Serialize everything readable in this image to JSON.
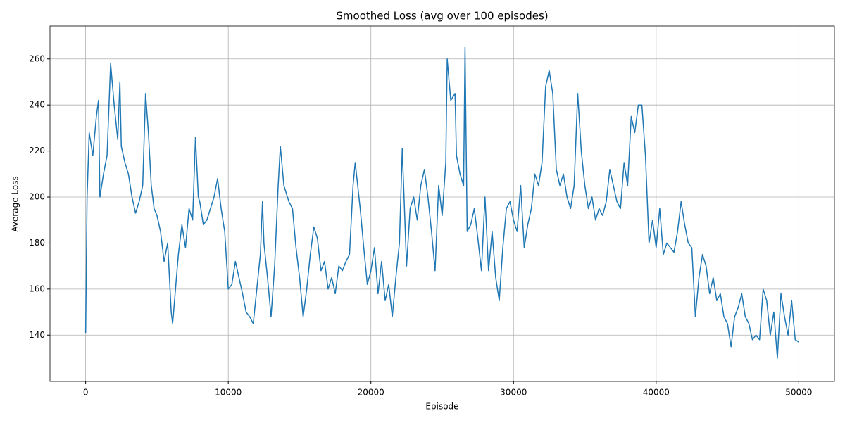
{
  "chart_data": {
    "type": "line",
    "title": "Smoothed Loss (avg over 100 episodes)",
    "x_label": "Episode",
    "y_label": "Average Loss",
    "xlim": [
      -2500,
      52500
    ],
    "ylim": [
      119.9,
      274.3
    ],
    "xticks": [
      0,
      10000,
      20000,
      30000,
      40000,
      50000
    ],
    "yticks": [
      140,
      160,
      180,
      200,
      220,
      240,
      260
    ],
    "grid": true,
    "series": [
      {
        "name": "Smoothed Loss",
        "color": "#1f77b4",
        "x": [
          0,
          100,
          250,
          500,
          750,
          900,
          1000,
          1250,
          1500,
          1750,
          2000,
          2250,
          2400,
          2500,
          2750,
          3000,
          3250,
          3500,
          3750,
          4000,
          4200,
          4400,
          4600,
          4800,
          5000,
          5250,
          5500,
          5750,
          6000,
          6100,
          6300,
          6500,
          6750,
          7000,
          7250,
          7500,
          7700,
          7900,
          8000,
          8250,
          8500,
          8750,
          9000,
          9250,
          9500,
          9750,
          10000,
          10250,
          10500,
          10750,
          11000,
          11250,
          11500,
          11750,
          12000,
          12250,
          12400,
          12500,
          12750,
          13000,
          13250,
          13500,
          13650,
          13900,
          14250,
          14500,
          14750,
          15000,
          15250,
          15500,
          15750,
          16000,
          16250,
          16500,
          16750,
          17000,
          17250,
          17500,
          17750,
          18000,
          18250,
          18500,
          18750,
          18900,
          19250,
          19500,
          19750,
          20000,
          20250,
          20500,
          20750,
          21000,
          21250,
          21500,
          21750,
          22000,
          22200,
          22500,
          22750,
          23000,
          23250,
          23500,
          23750,
          24000,
          24250,
          24500,
          24750,
          25000,
          25250,
          25350,
          25600,
          25900,
          26000,
          26250,
          26500,
          26600,
          26750,
          27000,
          27250,
          27500,
          27750,
          28000,
          28250,
          28500,
          28750,
          29000,
          29250,
          29500,
          29750,
          30000,
          30250,
          30500,
          30750,
          31000,
          31250,
          31500,
          31750,
          32000,
          32250,
          32500,
          32750,
          33000,
          33250,
          33500,
          33750,
          34000,
          34250,
          34500,
          34750,
          35000,
          35250,
          35500,
          35750,
          36000,
          36250,
          36500,
          36750,
          37000,
          37250,
          37500,
          37750,
          38000,
          38250,
          38500,
          38750,
          39000,
          39250,
          39500,
          39750,
          40000,
          40250,
          40500,
          40750,
          41000,
          41250,
          41500,
          41750,
          42000,
          42250,
          42500,
          42750,
          43000,
          43250,
          43500,
          43750,
          44000,
          44250,
          44500,
          44750,
          45000,
          45250,
          45500,
          45750,
          46000,
          46250,
          46500,
          46750,
          47000,
          47250,
          47500,
          47750,
          48000,
          48250,
          48500,
          48750,
          49000,
          49250,
          49500,
          49750,
          49999
        ],
        "values": [
          141,
          200,
          228,
          218,
          235,
          242,
          200,
          210,
          218,
          258,
          240,
          225,
          250,
          222,
          215,
          210,
          200,
          193,
          198,
          205,
          245,
          228,
          205,
          195,
          192,
          185,
          172,
          180,
          150,
          145,
          160,
          175,
          188,
          178,
          195,
          190,
          226,
          200,
          198,
          188,
          190,
          195,
          200,
          208,
          195,
          185,
          160,
          162,
          172,
          165,
          158,
          150,
          148,
          145,
          160,
          175,
          198,
          180,
          165,
          148,
          170,
          205,
          222,
          205,
          198,
          195,
          178,
          165,
          148,
          160,
          175,
          187,
          182,
          168,
          172,
          160,
          165,
          158,
          170,
          168,
          172,
          175,
          205,
          215,
          195,
          178,
          162,
          168,
          178,
          158,
          172,
          155,
          162,
          148,
          165,
          180,
          221,
          170,
          195,
          200,
          190,
          205,
          212,
          200,
          185,
          168,
          205,
          192,
          215,
          260,
          242,
          245,
          218,
          210,
          205,
          265,
          185,
          188,
          195,
          182,
          168,
          200,
          168,
          185,
          165,
          155,
          178,
          195,
          198,
          190,
          185,
          205,
          178,
          188,
          195,
          210,
          205,
          215,
          248,
          255,
          245,
          212,
          205,
          210,
          200,
          195,
          205,
          245,
          220,
          205,
          195,
          200,
          190,
          195,
          192,
          198,
          212,
          205,
          198,
          195,
          215,
          205,
          235,
          228,
          240,
          240,
          218,
          180,
          190,
          178,
          195,
          175,
          180,
          178,
          176,
          185,
          198,
          188,
          180,
          178,
          148,
          165,
          175,
          170,
          158,
          165,
          155,
          158,
          148,
          145,
          135,
          148,
          152,
          158,
          148,
          145,
          138,
          140,
          138,
          160,
          155,
          140,
          150,
          130,
          158,
          148,
          140,
          155,
          138,
          137
        ]
      }
    ]
  }
}
